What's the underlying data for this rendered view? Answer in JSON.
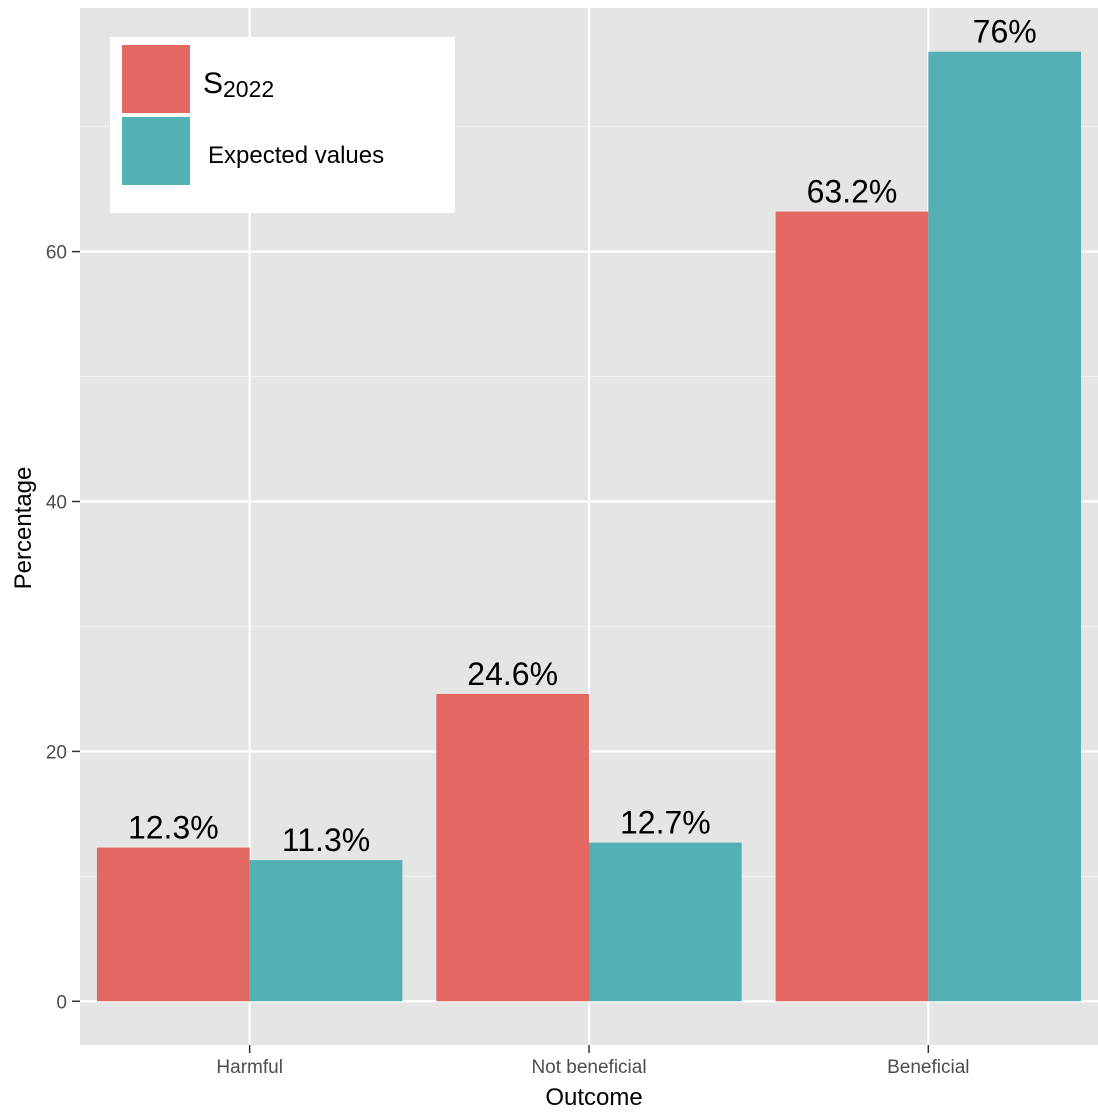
{
  "chart_data": {
    "type": "bar",
    "title": "",
    "xlabel": "Outcome",
    "ylabel": "Percentage",
    "categories": [
      "Harmful",
      "Not beneficial",
      "Beneficial"
    ],
    "series": [
      {
        "name_main": "S",
        "name_sub": "2022",
        "values": [
          12.3,
          24.6,
          63.2
        ],
        "labels": [
          "12.3%",
          "24.6%",
          "63.2%"
        ],
        "color": "#E36861"
      },
      {
        "name": "Expected values",
        "values": [
          11.3,
          12.7,
          76
        ],
        "labels": [
          "11.3%",
          "12.7%",
          "76%"
        ],
        "color": "#53B0B5"
      }
    ],
    "yticks": [
      "0",
      "20",
      "40",
      "60"
    ],
    "ylim": [
      -3.5,
      79.5
    ],
    "grid": true,
    "legend": "top-left",
    "panel_background": "#E5E5E5"
  }
}
